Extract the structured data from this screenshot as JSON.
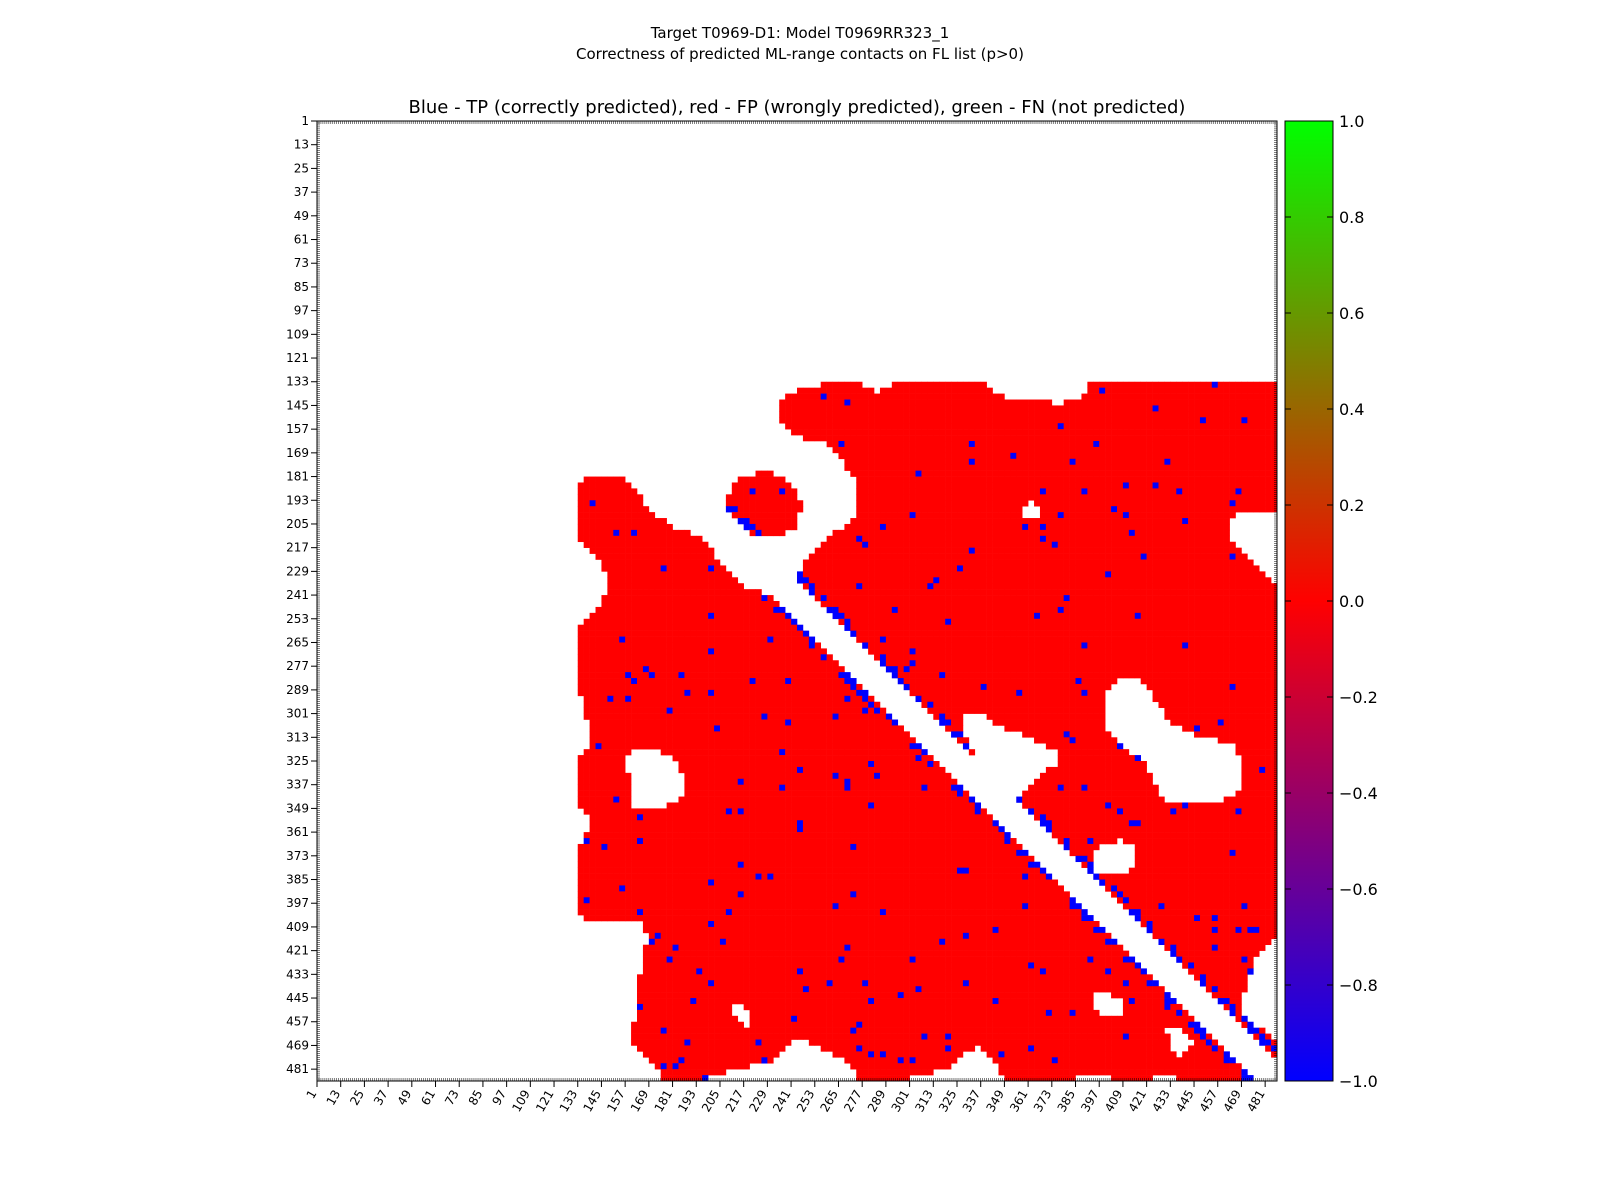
{
  "chart_data": {
    "type": "heatmap",
    "suptitle": [
      "Target T0969-D1: Model T0969RR323_1",
      "Correctness of predicted ML-range contacts on FL list (p>0)"
    ],
    "title": "Blue - TP (correctly predicted), red - FP (wrongly predicted), green - FN (not predicted)",
    "xlabel": "",
    "ylabel": "",
    "axis_range": [
      1,
      486
    ],
    "ticks": [
      "1",
      "13",
      "25",
      "37",
      "49",
      "61",
      "73",
      "85",
      "97",
      "109",
      "121",
      "133",
      "145",
      "157",
      "169",
      "181",
      "193",
      "205",
      "217",
      "229",
      "241",
      "253",
      "265",
      "277",
      "289",
      "301",
      "313",
      "325",
      "337",
      "349",
      "361",
      "373",
      "385",
      "397",
      "409",
      "421",
      "433",
      "445",
      "457",
      "469",
      "481"
    ],
    "populated_range": [
      133,
      486
    ],
    "diagonal_exclusion_band": 11,
    "categories": [
      {
        "label": "TP (correctly predicted)",
        "value": -1.0,
        "color": "#0000ff"
      },
      {
        "label": "FP (wrongly predicted)",
        "value": 0.0,
        "color": "#ff0000"
      },
      {
        "label": "FN (not predicted)",
        "value": 1.0,
        "color": "#00ff00"
      }
    ],
    "colorbar": {
      "range": [
        -1.0,
        1.0
      ],
      "ticks": [
        "1.0",
        "0.8",
        "0.6",
        "0.4",
        "0.2",
        "0.0",
        "−0.2",
        "−0.4",
        "−0.6",
        "−0.8",
        "−1.0"
      ],
      "colors": [
        "#00ff00",
        "#ff0000",
        "#0000ff"
      ]
    },
    "grid": false
  }
}
